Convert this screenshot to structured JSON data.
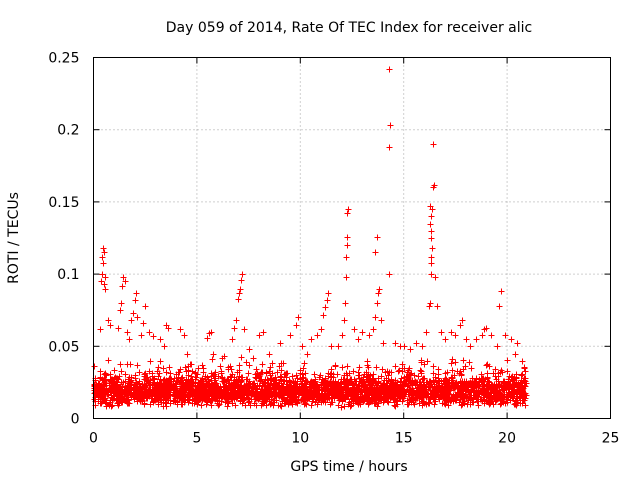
{
  "chart_data": {
    "type": "scatter",
    "title": "Day 059 of 2014, Rate Of TEC Index for receiver alic",
    "xlabel": "GPS time / hours",
    "ylabel": "ROTI / TECUs",
    "xlim": [
      0,
      25
    ],
    "ylim": [
      0,
      0.25
    ],
    "x_ticks": [
      0,
      5,
      10,
      15,
      20,
      25
    ],
    "y_ticks": [
      0,
      0.05,
      0.1,
      0.15,
      0.2,
      0.25
    ],
    "x_tick_labels": [
      "0",
      "5",
      "10",
      "15",
      "20",
      "25"
    ],
    "y_tick_labels": [
      "0",
      "0.05",
      "0.1",
      "0.15",
      "0.2",
      "0.25"
    ],
    "grid": true,
    "marker": "+",
    "color": "#ff0000",
    "series": [
      {
        "name": "ROTI",
        "baseline_band": {
          "x_range": [
            0,
            20.9
          ],
          "y_range": [
            0.008,
            0.03
          ],
          "note": "dense cloud of points"
        },
        "points": [
          [
            0.3,
            0.062
          ],
          [
            0.35,
            0.095
          ],
          [
            0.4,
            0.1
          ],
          [
            0.4,
            0.112
          ],
          [
            0.45,
            0.118
          ],
          [
            0.5,
            0.115
          ],
          [
            0.45,
            0.108
          ],
          [
            0.5,
            0.093
          ],
          [
            0.55,
            0.098
          ],
          [
            0.55,
            0.09
          ],
          [
            0.7,
            0.068
          ],
          [
            0.8,
            0.065
          ],
          [
            1.2,
            0.063
          ],
          [
            1.3,
            0.075
          ],
          [
            1.35,
            0.08
          ],
          [
            1.4,
            0.092
          ],
          [
            1.45,
            0.098
          ],
          [
            1.5,
            0.095
          ],
          [
            1.6,
            0.06
          ],
          [
            1.7,
            0.055
          ],
          [
            1.8,
            0.068
          ],
          [
            1.9,
            0.073
          ],
          [
            2.0,
            0.082
          ],
          [
            2.05,
            0.087
          ],
          [
            2.1,
            0.07
          ],
          [
            2.3,
            0.058
          ],
          [
            2.4,
            0.066
          ],
          [
            2.5,
            0.078
          ],
          [
            2.7,
            0.06
          ],
          [
            2.9,
            0.057
          ],
          [
            3.2,
            0.055
          ],
          [
            3.4,
            0.05
          ],
          [
            3.5,
            0.065
          ],
          [
            3.6,
            0.063
          ],
          [
            4.2,
            0.062
          ],
          [
            4.4,
            0.058
          ],
          [
            4.5,
            0.045
          ],
          [
            4.7,
            0.038
          ],
          [
            5.5,
            0.056
          ],
          [
            5.6,
            0.059
          ],
          [
            5.7,
            0.06
          ],
          [
            5.8,
            0.045
          ],
          [
            6.2,
            0.042
          ],
          [
            6.7,
            0.055
          ],
          [
            6.8,
            0.063
          ],
          [
            6.9,
            0.068
          ],
          [
            7.0,
            0.083
          ],
          [
            7.05,
            0.087
          ],
          [
            7.1,
            0.09
          ],
          [
            7.15,
            0.096
          ],
          [
            7.2,
            0.1
          ],
          [
            7.3,
            0.062
          ],
          [
            7.5,
            0.048
          ],
          [
            7.7,
            0.042
          ],
          [
            8.0,
            0.058
          ],
          [
            8.2,
            0.06
          ],
          [
            8.5,
            0.045
          ],
          [
            9.0,
            0.052
          ],
          [
            9.5,
            0.058
          ],
          [
            9.8,
            0.065
          ],
          [
            9.9,
            0.07
          ],
          [
            10.1,
            0.05
          ],
          [
            10.3,
            0.045
          ],
          [
            10.5,
            0.055
          ],
          [
            10.8,
            0.058
          ],
          [
            11.0,
            0.062
          ],
          [
            11.1,
            0.072
          ],
          [
            11.2,
            0.077
          ],
          [
            11.3,
            0.082
          ],
          [
            11.35,
            0.087
          ],
          [
            11.5,
            0.05
          ],
          [
            11.8,
            0.05
          ],
          [
            12.0,
            0.058
          ],
          [
            12.1,
            0.068
          ],
          [
            12.15,
            0.08
          ],
          [
            12.2,
            0.098
          ],
          [
            12.2,
            0.112
          ],
          [
            12.25,
            0.12
          ],
          [
            12.25,
            0.126
          ],
          [
            12.25,
            0.142
          ],
          [
            12.3,
            0.145
          ],
          [
            12.6,
            0.062
          ],
          [
            12.8,
            0.055
          ],
          [
            13.0,
            0.06
          ],
          [
            13.3,
            0.058
          ],
          [
            13.5,
            0.062
          ],
          [
            13.6,
            0.07
          ],
          [
            13.7,
            0.08
          ],
          [
            13.75,
            0.087
          ],
          [
            13.8,
            0.09
          ],
          [
            13.6,
            0.115
          ],
          [
            13.7,
            0.126
          ],
          [
            13.9,
            0.068
          ],
          [
            14.0,
            0.052
          ],
          [
            14.3,
            0.1
          ],
          [
            14.3,
            0.188
          ],
          [
            14.35,
            0.203
          ],
          [
            14.3,
            0.242
          ],
          [
            14.6,
            0.052
          ],
          [
            14.8,
            0.05
          ],
          [
            15.0,
            0.05
          ],
          [
            15.3,
            0.048
          ],
          [
            15.6,
            0.052
          ],
          [
            15.9,
            0.05
          ],
          [
            16.1,
            0.06
          ],
          [
            16.2,
            0.078
          ],
          [
            16.25,
            0.08
          ],
          [
            16.3,
            0.1
          ],
          [
            16.3,
            0.108
          ],
          [
            16.3,
            0.112
          ],
          [
            16.35,
            0.118
          ],
          [
            16.3,
            0.125
          ],
          [
            16.3,
            0.13
          ],
          [
            16.25,
            0.135
          ],
          [
            16.3,
            0.14
          ],
          [
            16.25,
            0.147
          ],
          [
            16.35,
            0.145
          ],
          [
            16.4,
            0.16
          ],
          [
            16.45,
            0.162
          ],
          [
            16.4,
            0.19
          ],
          [
            16.5,
            0.098
          ],
          [
            16.6,
            0.078
          ],
          [
            16.8,
            0.06
          ],
          [
            17.0,
            0.055
          ],
          [
            17.3,
            0.06
          ],
          [
            17.5,
            0.058
          ],
          [
            17.7,
            0.065
          ],
          [
            17.8,
            0.068
          ],
          [
            18.0,
            0.055
          ],
          [
            18.2,
            0.05
          ],
          [
            18.5,
            0.055
          ],
          [
            18.8,
            0.058
          ],
          [
            18.9,
            0.062
          ],
          [
            19.0,
            0.063
          ],
          [
            19.2,
            0.058
          ],
          [
            19.5,
            0.05
          ],
          [
            19.6,
            0.078
          ],
          [
            19.7,
            0.088
          ],
          [
            19.9,
            0.058
          ],
          [
            20.2,
            0.055
          ],
          [
            20.4,
            0.045
          ],
          [
            20.5,
            0.052
          ],
          [
            20.7,
            0.04
          ],
          [
            20.8,
            0.035
          ]
        ]
      }
    ]
  }
}
